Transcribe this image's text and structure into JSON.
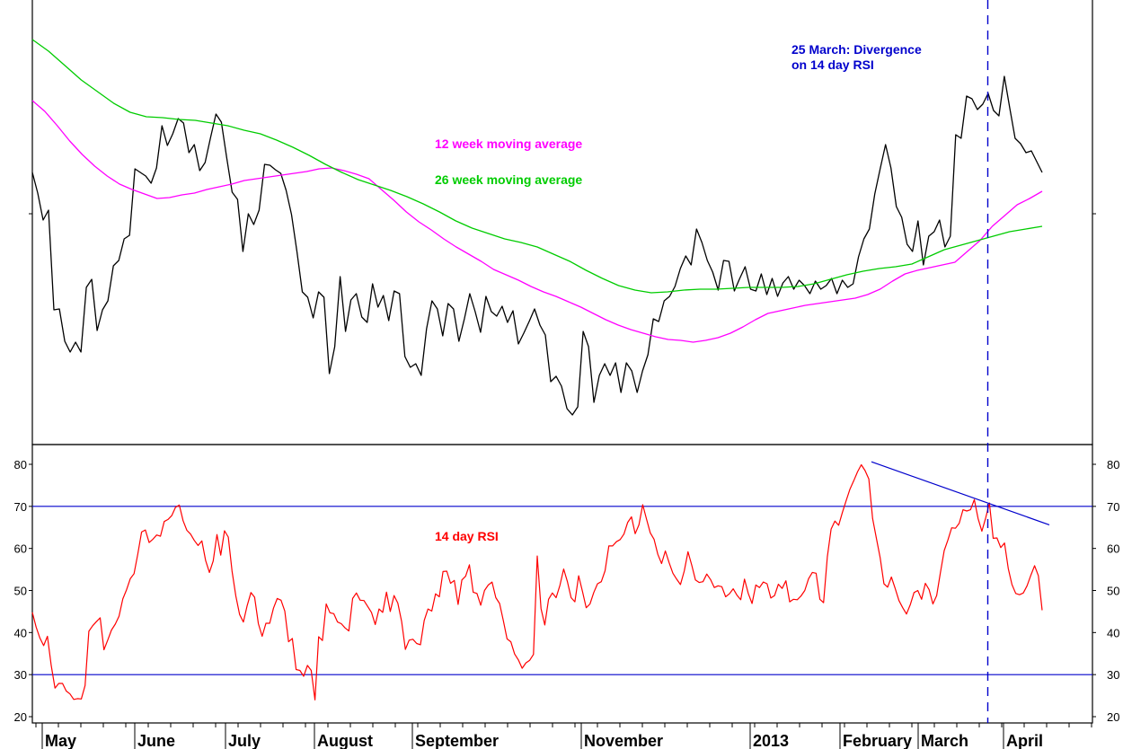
{
  "colors": {
    "price": "#000000",
    "ma12": "#ff00ff",
    "ma26": "#00cc00",
    "rsi": "#ff0000",
    "guides": "#0000cc",
    "axis": "#000000"
  },
  "chart_data": [
    {
      "type": "line",
      "panel": "price",
      "yaxis_labels": "none",
      "series": [
        {
          "name": "",
          "color": "#000000",
          "values": [
            192,
            215,
            245,
            234,
            345,
            344,
            380,
            392,
            381,
            392,
            320,
            311,
            368,
            345,
            335,
            296,
            290,
            266,
            262,
            188,
            192,
            196,
            204,
            187,
            140,
            162,
            149,
            132,
            137,
            170,
            161,
            190,
            181,
            153,
            127,
            136,
            176,
            214,
            222,
            280,
            238,
            250,
            234,
            183,
            184,
            189,
            193,
            212,
            239,
            280,
            325,
            331,
            354,
            325,
            331,
            416,
            386,
            308,
            369,
            334,
            327,
            353,
            359,
            316,
            342,
            329,
            357,
            324,
            327,
            397,
            409,
            405,
            418,
            366,
            335,
            344,
            374,
            338,
            344,
            380,
            355,
            327,
            347,
            370,
            330,
            347,
            352,
            341,
            359,
            346,
            383,
            371,
            358,
            344,
            362,
            373,
            425,
            419,
            430,
            455,
            462,
            453,
            369,
            386,
            448,
            418,
            405,
            418,
            404,
            437,
            404,
            413,
            437,
            413,
            395,
            355,
            358,
            335,
            330,
            319,
            299,
            285,
            295,
            255,
            270,
            290,
            303,
            323,
            290,
            291,
            324,
            310,
            297,
            322,
            324,
            305,
            328,
            310,
            330,
            315,
            308,
            322,
            312,
            318,
            327,
            313,
            322,
            318,
            310,
            327,
            312,
            320,
            316,
            286,
            266,
            255,
            216,
            188,
            161,
            187,
            230,
            242,
            272,
            280,
            246,
            295,
            263,
            258,
            245,
            275,
            263,
            150,
            154,
            107,
            110,
            122,
            116,
            104,
            123,
            129,
            85,
            120,
            154,
            160,
            170,
            168,
            180,
            192
          ]
        },
        {
          "name": "12 week moving average",
          "color": "#ff00ff",
          "values": [
            112,
            124,
            140,
            157,
            172,
            185,
            196,
            205,
            211,
            216,
            221,
            220,
            217,
            215,
            211,
            208,
            205,
            201,
            199,
            197,
            195,
            193,
            191,
            188,
            187,
            190,
            194,
            199,
            211,
            223,
            236,
            247,
            256,
            266,
            275,
            283,
            291,
            300,
            306,
            312,
            319,
            325,
            330,
            336,
            342,
            349,
            356,
            362,
            367,
            371,
            375,
            378,
            379,
            381,
            379,
            376,
            371,
            364,
            356,
            349,
            346,
            343,
            340,
            338,
            336,
            334,
            332,
            328,
            322,
            313,
            305,
            301,
            298,
            295,
            292,
            280,
            268,
            252,
            240,
            228,
            221,
            213
          ]
        },
        {
          "name": "26 week moving average",
          "color": "#00cc00",
          "values": [
            44,
            57,
            73,
            89,
            102,
            115,
            125,
            130,
            131,
            133,
            134,
            137,
            140,
            145,
            149,
            156,
            164,
            173,
            183,
            192,
            200,
            206,
            212,
            219,
            227,
            236,
            246,
            254,
            260,
            266,
            270,
            275,
            283,
            291,
            301,
            310,
            318,
            323,
            326,
            325,
            323,
            322,
            322,
            321,
            320,
            320,
            320,
            319,
            316,
            311,
            306,
            302,
            299,
            297,
            294,
            286,
            278,
            273,
            268,
            263,
            258,
            255,
            252
          ]
        }
      ]
    },
    {
      "type": "line",
      "panel": "rsi",
      "ylim": [
        20,
        80
      ],
      "yticks": [
        80,
        70,
        60,
        50,
        40,
        30,
        20
      ],
      "reference_lines": [
        70,
        30
      ],
      "series": [
        {
          "name": "14 day RSI",
          "color": "#ff0000",
          "values": [
            44.8,
            41.3,
            38.7,
            36.9,
            39.1,
            32.2,
            26.8,
            27.9,
            27.9,
            26.1,
            25.4,
            24.1,
            24.3,
            24.2,
            27.4,
            40.3,
            41.6,
            42.6,
            43.5,
            35.9,
            38.2,
            40.6,
            42.0,
            43.9,
            48.0,
            50.2,
            52.8,
            54.0,
            58.7,
            63.9,
            64.4,
            61.4,
            62.2,
            63.2,
            62.9,
            66.4,
            66.9,
            67.8,
            69.8,
            70.3,
            66.6,
            64.3,
            63.4,
            61.9,
            60.7,
            61.8,
            57.1,
            54.3,
            57.0,
            63.3,
            58.4,
            64.2,
            62.7,
            54.6,
            48.7,
            44.3,
            42.5,
            46.4,
            49.5,
            48.4,
            42.1,
            39.1,
            42.2,
            42.2,
            45.8,
            48.1,
            47.7,
            45.1,
            37.8,
            38.6,
            31.2,
            31.0,
            29.6,
            32.2,
            31.0,
            24.0,
            39.0,
            38.1,
            46.8,
            44.7,
            44.5,
            42.5,
            42.1,
            41.1,
            40.4,
            48.1,
            49.4,
            47.7,
            47.6,
            46.2,
            44.8,
            41.9,
            45.6,
            44.8,
            49.6,
            45.0,
            48.8,
            47.0,
            42.7,
            36.0,
            38.2,
            38.4,
            37.4,
            37.1,
            42.9,
            45.6,
            45.1,
            49.2,
            48.5,
            54.5,
            54.6,
            51.7,
            52.4,
            46.7,
            52.5,
            53.4,
            56.1,
            49.6,
            49.3,
            46.5,
            50.0,
            51.3,
            52.0,
            48.3,
            46.9,
            42.8,
            38.5,
            37.8,
            34.9,
            33.5,
            31.5,
            32.8,
            33.4,
            34.8,
            58.2,
            45.7,
            41.8,
            47.9,
            49.4,
            48.3,
            51.2,
            55.1,
            52.1,
            48.3,
            47.3,
            53.5,
            49.8,
            45.9,
            46.8,
            49.5,
            51.6,
            52.1,
            54.7,
            60.6,
            60.6,
            61.6,
            62.1,
            63.4,
            66.2,
            67.5,
            63.5,
            65.6,
            70.4,
            67.0,
            63.7,
            62.2,
            58.6,
            56.4,
            59.4,
            56.6,
            54.1,
            52.7,
            51.4,
            54.6,
            59.2,
            56.0,
            52.5,
            51.9,
            52.1,
            53.9,
            52.6,
            50.7,
            51.1,
            50.9,
            48.5,
            49.2,
            50.4,
            48.9,
            47.8,
            52.7,
            49.3,
            46.9,
            51.3,
            50.7,
            52.0,
            51.6,
            48.2,
            48.8,
            51.5,
            50.5,
            52.3,
            47.3,
            47.9,
            47.8,
            48.7,
            50.0,
            52.8,
            54.3,
            54.1,
            47.9,
            47.1,
            58.0,
            64.6,
            66.5,
            65.5,
            68.6,
            71.4,
            74.1,
            76.1,
            78.2,
            79.9,
            78.5,
            76.5,
            67.1,
            62.4,
            57.8,
            51.6,
            50.8,
            53.2,
            50.5,
            47.6,
            45.9,
            44.4,
            46.6,
            49.5,
            50.0,
            47.9,
            51.7,
            50.2,
            46.8,
            48.8,
            54.3,
            59.5,
            62.0,
            64.9,
            64.8,
            66.0,
            69.2,
            68.9,
            69.2,
            71.6,
            67.1,
            64.1,
            67.2,
            70.8,
            62.4,
            62.5,
            60.2,
            61.3,
            55.2,
            51.4,
            49.3,
            49.0,
            49.4,
            51.1,
            53.6,
            55.9,
            53.5,
            45.3
          ]
        },
        {
          "name": "",
          "color": "#0000cc",
          "role": "divergence trend line",
          "values": [
            80.6,
            65.6
          ]
        }
      ]
    }
  ],
  "annotations": {
    "divergence_line1": "25 March: Divergence",
    "divergence_line2": "on 14 day RSI",
    "ma12_label": "12 week moving average",
    "ma26_label": "26 week moving average",
    "rsi_label": "14 day RSI"
  },
  "x_axis": {
    "labels": [
      "May",
      "June",
      "July",
      "August",
      "September",
      "November",
      "2013",
      "February",
      "March",
      "April"
    ]
  }
}
